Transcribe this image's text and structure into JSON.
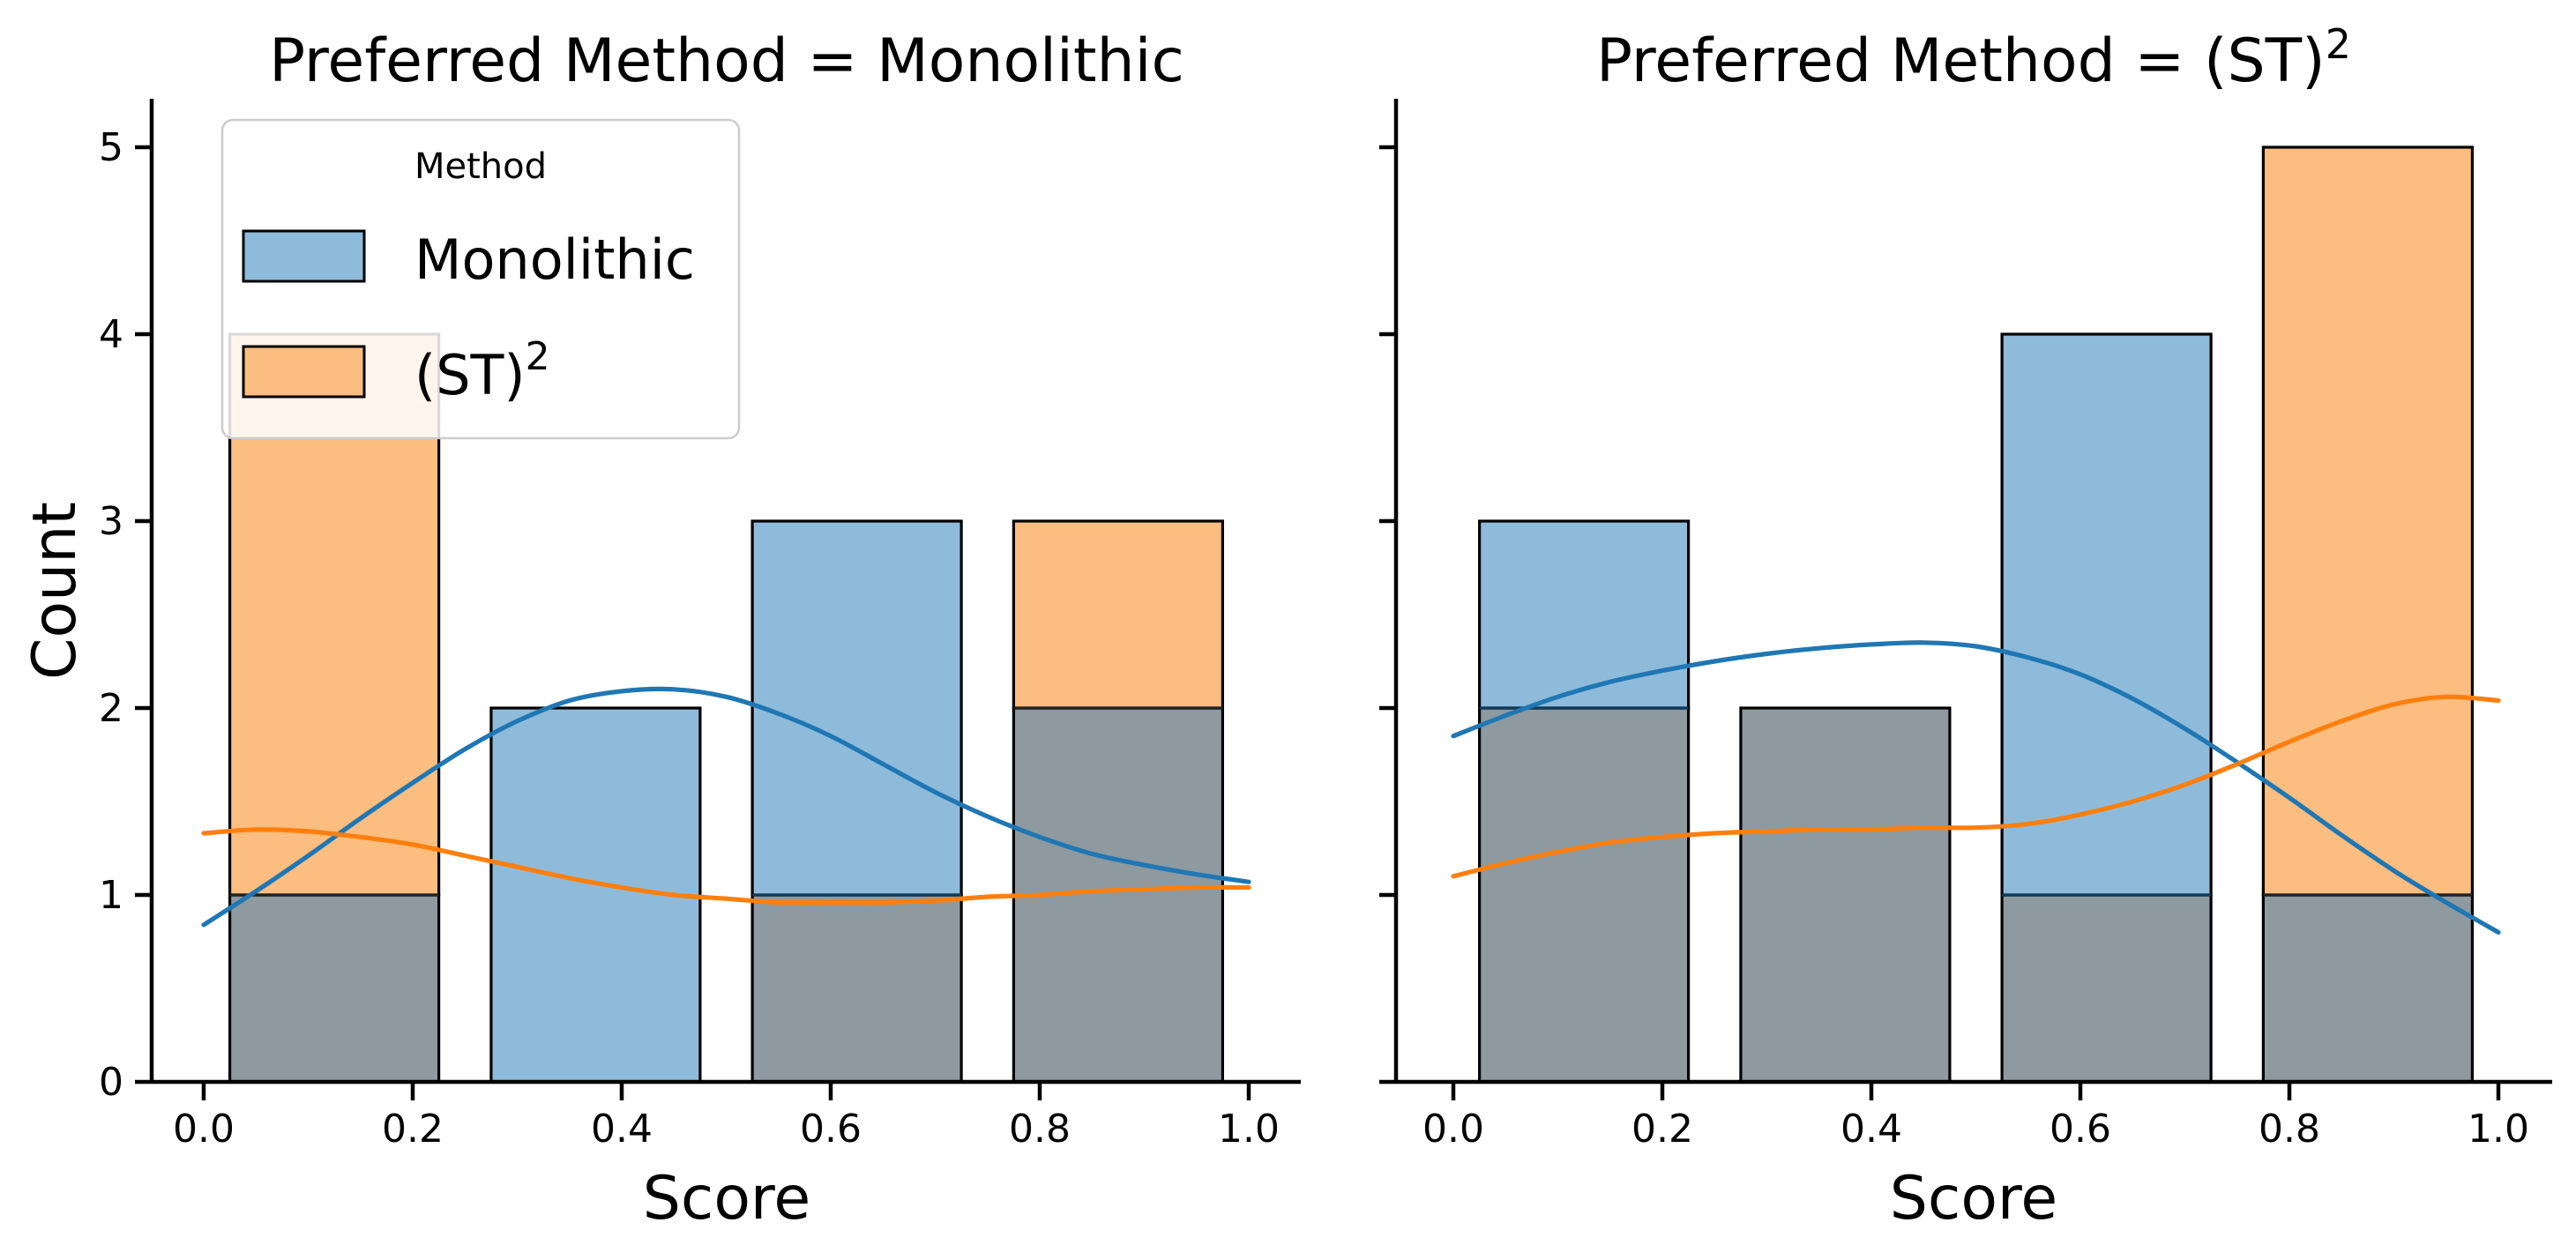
{
  "figure": {
    "background": "#ffffff",
    "kind": "faceted histogram with kde overlay"
  },
  "colors": {
    "monolithic_fill": "#8FBBDA",
    "st2_fill": "#FCBD80",
    "overlap_fill": "#8E9AA0",
    "monolithic_line": "#1F77B4",
    "st2_line": "#FF7F0E",
    "bar_edge": "#000000",
    "overlap_edge_blue_over": "#0F3C5A",
    "overlap_edge_orange_over": "#222222",
    "spine": "#000000",
    "legend_border": "#CCCCCC"
  },
  "axes": {
    "xlabel": "Score",
    "ylabel": "Count",
    "x_tick_labels": [
      "0.0",
      "0.2",
      "0.4",
      "0.6",
      "0.8",
      "1.0"
    ],
    "x_tick_values": [
      0.0,
      0.2,
      0.4,
      0.6,
      0.8,
      1.0
    ],
    "y_tick_labels": [
      "0",
      "1",
      "2",
      "3",
      "4",
      "5"
    ],
    "y_tick_values": [
      0,
      1,
      2,
      3,
      4,
      5
    ],
    "xlim": [
      -0.05,
      1.05
    ],
    "ylim": [
      0,
      5.25
    ],
    "grid": false
  },
  "legend": {
    "title": "Method",
    "position": "upper left of first subplot",
    "entries": [
      {
        "label_base": "Monolithic",
        "label_sup": "",
        "color": "#8FBBDA"
      },
      {
        "label_base": "(ST)",
        "label_sup": "2",
        "color": "#FCBD80"
      }
    ]
  },
  "chart_data": [
    {
      "type": "bar",
      "subtype": "histogram+kde",
      "title_base": "Preferred Method = Monolithic",
      "title_sup": "",
      "xlabel": "Score",
      "ylabel": "Count",
      "bin_edges": [
        0.0,
        0.25,
        0.5,
        0.75,
        1.0
      ],
      "bar_shrink": 0.8,
      "show_y_tick_labels": true,
      "has_legend": true,
      "series": [
        {
          "name": "Monolithic",
          "counts": [
            1,
            2,
            3,
            2
          ],
          "kde": [
            [
              0,
              0.84
            ],
            [
              0.05,
              1.02
            ],
            [
              0.1,
              1.21
            ],
            [
              0.15,
              1.41
            ],
            [
              0.2,
              1.6
            ],
            [
              0.25,
              1.78
            ],
            [
              0.3,
              1.93
            ],
            [
              0.35,
              2.04
            ],
            [
              0.4,
              2.09
            ],
            [
              0.45,
              2.1
            ],
            [
              0.5,
              2.06
            ],
            [
              0.55,
              1.97
            ],
            [
              0.6,
              1.85
            ],
            [
              0.65,
              1.7
            ],
            [
              0.7,
              1.55
            ],
            [
              0.75,
              1.42
            ],
            [
              0.8,
              1.31
            ],
            [
              0.85,
              1.22
            ],
            [
              0.9,
              1.16
            ],
            [
              0.95,
              1.11
            ],
            [
              1,
              1.07
            ]
          ]
        },
        {
          "name": "(ST)2",
          "counts": [
            4,
            0,
            1,
            3
          ],
          "kde": [
            [
              0,
              1.33
            ],
            [
              0.05,
              1.35
            ],
            [
              0.1,
              1.34
            ],
            [
              0.15,
              1.31
            ],
            [
              0.2,
              1.27
            ],
            [
              0.25,
              1.21
            ],
            [
              0.3,
              1.15
            ],
            [
              0.35,
              1.09
            ],
            [
              0.4,
              1.04
            ],
            [
              0.45,
              1.0
            ],
            [
              0.5,
              0.98
            ],
            [
              0.55,
              0.96
            ],
            [
              0.6,
              0.96
            ],
            [
              0.65,
              0.96
            ],
            [
              0.7,
              0.97
            ],
            [
              0.75,
              0.99
            ],
            [
              0.8,
              1.0
            ],
            [
              0.85,
              1.02
            ],
            [
              0.9,
              1.03
            ],
            [
              0.95,
              1.04
            ],
            [
              1,
              1.04
            ]
          ]
        }
      ]
    },
    {
      "type": "bar",
      "subtype": "histogram+kde",
      "title_base": "Preferred Method = (ST)",
      "title_sup": "2",
      "xlabel": "Score",
      "ylabel": "Count",
      "bin_edges": [
        0.0,
        0.25,
        0.5,
        0.75,
        1.0
      ],
      "bar_shrink": 0.8,
      "show_y_tick_labels": false,
      "has_legend": false,
      "series": [
        {
          "name": "Monolithic",
          "counts": [
            3,
            2,
            4,
            1
          ],
          "kde": [
            [
              0,
              1.85
            ],
            [
              0.05,
              1.96
            ],
            [
              0.1,
              2.06
            ],
            [
              0.15,
              2.14
            ],
            [
              0.2,
              2.2
            ],
            [
              0.25,
              2.25
            ],
            [
              0.3,
              2.29
            ],
            [
              0.35,
              2.32
            ],
            [
              0.4,
              2.34
            ],
            [
              0.45,
              2.35
            ],
            [
              0.5,
              2.33
            ],
            [
              0.55,
              2.27
            ],
            [
              0.6,
              2.18
            ],
            [
              0.65,
              2.05
            ],
            [
              0.7,
              1.89
            ],
            [
              0.75,
              1.71
            ],
            [
              0.8,
              1.52
            ],
            [
              0.85,
              1.32
            ],
            [
              0.9,
              1.13
            ],
            [
              0.95,
              0.96
            ],
            [
              1,
              0.8
            ]
          ]
        },
        {
          "name": "(ST)2",
          "counts": [
            2,
            2,
            1,
            5
          ],
          "kde": [
            [
              0,
              1.1
            ],
            [
              0.05,
              1.17
            ],
            [
              0.1,
              1.23
            ],
            [
              0.15,
              1.28
            ],
            [
              0.2,
              1.31
            ],
            [
              0.25,
              1.33
            ],
            [
              0.3,
              1.34
            ],
            [
              0.35,
              1.35
            ],
            [
              0.4,
              1.35
            ],
            [
              0.45,
              1.36
            ],
            [
              0.5,
              1.36
            ],
            [
              0.55,
              1.38
            ],
            [
              0.6,
              1.43
            ],
            [
              0.65,
              1.5
            ],
            [
              0.7,
              1.59
            ],
            [
              0.75,
              1.7
            ],
            [
              0.8,
              1.82
            ],
            [
              0.85,
              1.93
            ],
            [
              0.9,
              2.02
            ],
            [
              0.95,
              2.06
            ],
            [
              1,
              2.04
            ]
          ]
        }
      ]
    }
  ]
}
